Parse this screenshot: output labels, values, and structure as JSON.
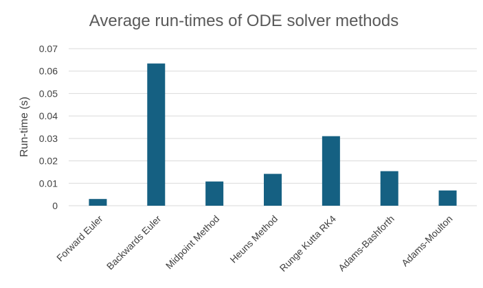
{
  "chart_data": {
    "type": "bar",
    "title": "Average run-times of ODE solver methods",
    "xlabel": "",
    "ylabel": "Run-time (s)",
    "categories": [
      "Forward Euler",
      "Backwards Euler",
      "Midpoint Method",
      "Heuns Method",
      "Runge Kutta RK4",
      "Adams-Bashforth",
      "Adams-Moulton"
    ],
    "values": [
      0.003,
      0.0634,
      0.0108,
      0.0142,
      0.031,
      0.0154,
      0.0068
    ],
    "ylim": [
      0,
      0.07
    ],
    "yticks": [
      "0",
      "0.01",
      "0.02",
      "0.03",
      "0.04",
      "0.05",
      "0.06",
      "0.07"
    ],
    "grid": "horizontal",
    "legend": "none",
    "bar_color": "#156082",
    "grid_color": "#d9d9d9"
  }
}
